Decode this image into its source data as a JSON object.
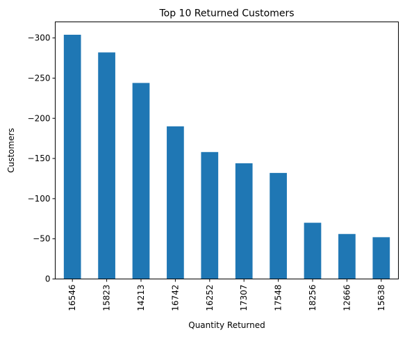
{
  "chart_data": {
    "type": "bar",
    "title": "Top 10 Returned Customers",
    "xlabel": "Quantity Returned",
    "ylabel": "Customers",
    "categories": [
      "16546",
      "15823",
      "14213",
      "16742",
      "16252",
      "17307",
      "17548",
      "18256",
      "12666",
      "15638"
    ],
    "values": [
      -304,
      -282,
      -244,
      -190,
      -158,
      -144,
      -132,
      -70,
      -56,
      -52
    ],
    "ylim": [
      0,
      -320
    ],
    "yticks": [
      0,
      -50,
      -100,
      -150,
      -200,
      -250,
      -300
    ],
    "ytick_labels": [
      "0",
      "−50",
      "−100",
      "−150",
      "−200",
      "−250",
      "−300"
    ],
    "grid": false,
    "legend": "none",
    "bar_color": "#1f77b4"
  }
}
